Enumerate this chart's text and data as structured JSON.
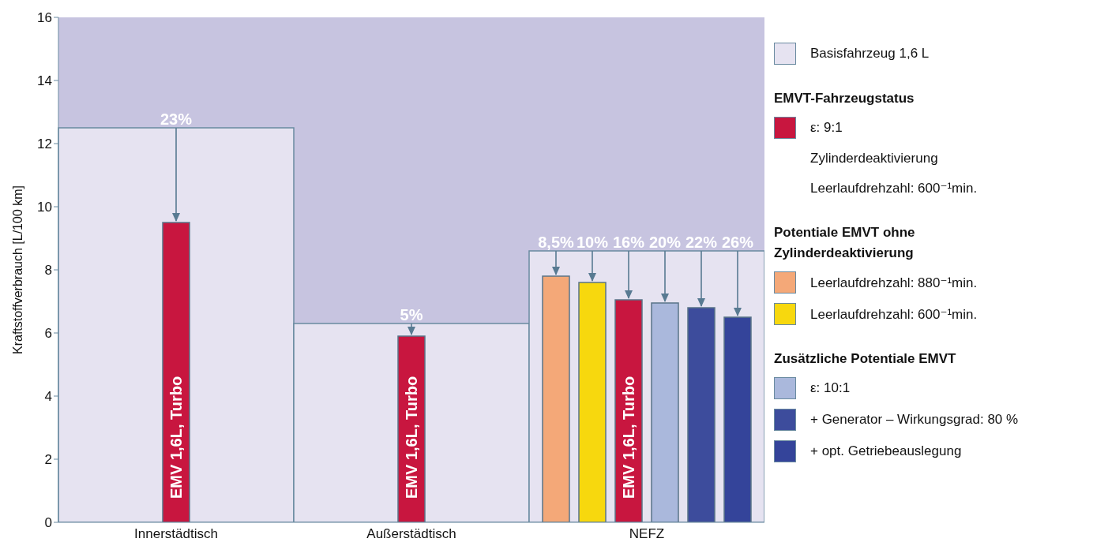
{
  "chart_data": {
    "type": "bar",
    "ylabel": "Kraftstoffverbrauch [L/100 km]",
    "categories": [
      "Innerstädtisch",
      "Außerstädtisch",
      "NEFZ"
    ],
    "series": [
      {
        "name": "Basisfahrzeug 1,6 L",
        "color": "#e6e3f1",
        "values": [
          12.5,
          6.3,
          8.6
        ]
      },
      {
        "name": "ε: 9:1",
        "color": "#c8163f",
        "values": [
          9.5,
          5.9,
          7.05
        ]
      },
      {
        "name": "Leerlaufdrehzahl: 880⁻¹min.",
        "color": "#f4a878",
        "values": [
          null,
          null,
          7.8
        ]
      },
      {
        "name": "Leerlaufdrehzahl: 600⁻¹min.",
        "color": "#f7d80e",
        "values": [
          null,
          null,
          7.6
        ]
      },
      {
        "name": "ε: 10:1",
        "color": "#aab8dc",
        "values": [
          null,
          null,
          6.95
        ]
      },
      {
        "name": "+ Generator – Wirkungsgrad: 80 %",
        "color": "#3d4c9c",
        "values": [
          null,
          null,
          6.8
        ]
      },
      {
        "name": "+ opt. Getriebeauslegung",
        "color": "#34449a",
        "values": [
          null,
          null,
          6.5
        ]
      }
    ],
    "ylim": [
      0,
      16
    ],
    "yticks": [
      0,
      2,
      4,
      6,
      8,
      10,
      12,
      14,
      16
    ],
    "legend": "right",
    "annotations": [
      "EMVT-Fahrzeugstatus",
      "Zylinderdeaktivierung",
      "Leerlaufdrehzahl: 600⁻¹min.",
      "Potentiale EMVT ohne Zylinderdeaktivierung",
      "Zusätzliche Potentiale EMVT",
      "EMV 1,6L, Turbo",
      {
        "text": "23%",
        "x": "Innerstädtisch",
        "y": 9.5
      },
      {
        "text": "5%",
        "x": "Außerstädtisch",
        "y": 5.9
      },
      {
        "text": "8,5%",
        "y": 7.8
      },
      {
        "text": "10%",
        "y": 7.6
      },
      {
        "text": "16%",
        "y": 7.05
      },
      {
        "text": "20%",
        "y": 6.95
      },
      {
        "text": "22%",
        "y": 6.8
      },
      {
        "text": "26%",
        "y": 6.5
      }
    ]
  }
}
